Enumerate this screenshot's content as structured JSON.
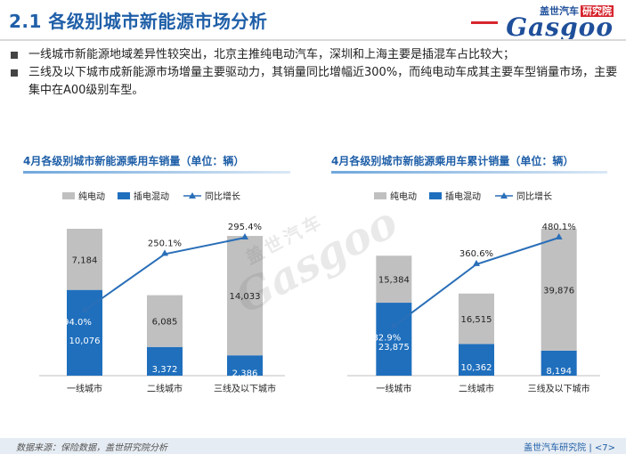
{
  "header": {
    "title": "2.1 各级别城市新能源市场分析",
    "logo_cn": "盖世汽车",
    "logo_badge": "研究院",
    "logo_en": "Gasgoo"
  },
  "bullets": [
    "一线城市新能源地域差异性较突出，北京主推纯电动汽车，深圳和上海主要是插混车占比较大；",
    "三线及以下城市成新能源市场增量主要驱动力，其销量同比增幅近300%，而纯电动车成其主要车型销量市场，主要集中在A00级别车型。"
  ],
  "watermark": {
    "cn": "盖世汽车",
    "en": "Gasgoo"
  },
  "colors": {
    "bev": "#c0c0c0",
    "phev": "#1f6fbd",
    "growth": "#2a6fb8",
    "title": "#1f5fa8"
  },
  "chart_data": [
    {
      "type": "bar",
      "stacked": true,
      "title": "4月各级别城市新能源乘用车销量（单位：辆）",
      "categories": [
        "一线城市",
        "二线城市",
        "三线及以下城市"
      ],
      "series": [
        {
          "name": "纯电动",
          "kind": "bar",
          "values": [
            7184,
            6085,
            14033
          ]
        },
        {
          "name": "插电混动",
          "kind": "bar",
          "values": [
            10076,
            3372,
            2386
          ]
        },
        {
          "name": "同比增长",
          "kind": "line",
          "values": [
            94.0,
            250.1,
            295.4
          ],
          "labels": [
            "94.0%",
            "250.1%",
            "295.4%"
          ]
        }
      ],
      "bar_labels": {
        "bev": [
          "7,184",
          "6,085",
          "14,033"
        ],
        "phev": [
          "10,076",
          "3,372",
          "2,386"
        ]
      },
      "legend": [
        "纯电动",
        "插电混动",
        "同比增长"
      ],
      "legend_position": "top",
      "grid": false
    },
    {
      "type": "bar",
      "stacked": true,
      "title": "4月各级别城市新能源乘用车累计销量（单位：辆）",
      "categories": [
        "一线城市",
        "二线城市",
        "三线及以下城市"
      ],
      "series": [
        {
          "name": "纯电动",
          "kind": "bar",
          "values": [
            15384,
            16515,
            39876
          ]
        },
        {
          "name": "插电混动",
          "kind": "bar",
          "values": [
            23875,
            10362,
            8194
          ]
        },
        {
          "name": "同比增长",
          "kind": "line",
          "values": [
            82.9,
            360.6,
            480.1
          ],
          "labels": [
            "82.9%",
            "360.6%",
            "480.1%"
          ]
        }
      ],
      "bar_labels": {
        "bev": [
          "15,384",
          "16,515",
          "39,876"
        ],
        "phev": [
          "23,875",
          "10,362",
          "8,194"
        ]
      },
      "legend": [
        "纯电动",
        "插电混动",
        "同比增长"
      ],
      "legend_position": "top",
      "grid": false
    }
  ],
  "footer": {
    "source": "数据来源：保险数据，盖世研究院分析",
    "right": "盖世汽车研究院 | <7>"
  }
}
